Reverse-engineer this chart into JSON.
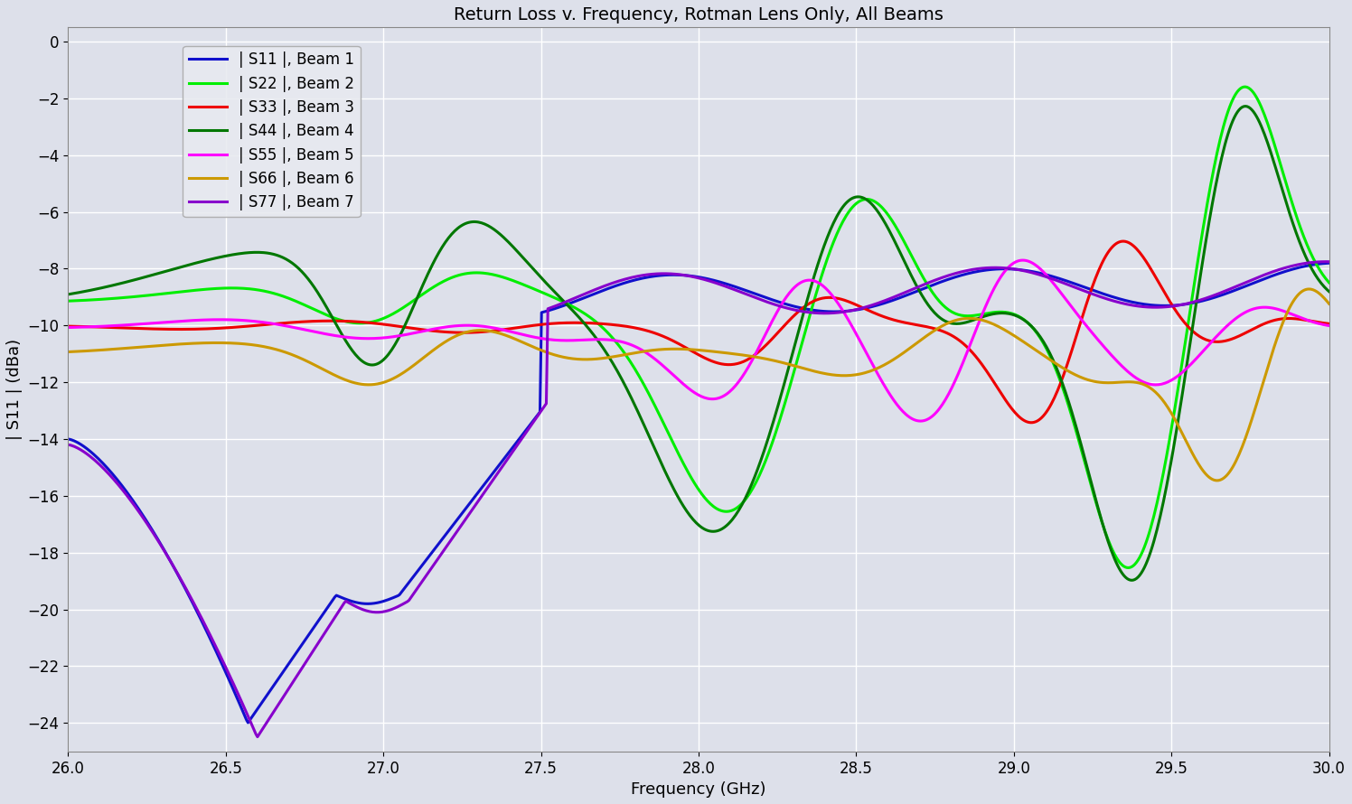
{
  "title": "Return Loss v. Frequency, Rotman Lens Only, All Beams",
  "xlabel": "Frequency (GHz)",
  "ylabel": "| S11 | (dBa)",
  "xlim": [
    26,
    30
  ],
  "ylim": [
    -25,
    0.5
  ],
  "xticks": [
    26,
    26.5,
    27,
    27.5,
    28,
    28.5,
    29,
    29.5,
    30
  ],
  "yticks": [
    0,
    -2,
    -4,
    -6,
    -8,
    -10,
    -12,
    -14,
    -16,
    -18,
    -20,
    -22,
    -24
  ],
  "background_color": "#dde0ea",
  "grid_color": "#ffffff",
  "legend_labels": [
    "| S11 |, Beam 1",
    "| S22 |, Beam 2",
    "| S33 |, Beam 3",
    "| S44 |, Beam 4",
    "| S55 |, Beam 5",
    "| S66 |, Beam 6",
    "| S77 |, Beam 7"
  ],
  "line_colors": [
    "#1010cc",
    "#00ee00",
    "#ee0000",
    "#007700",
    "#ff00ff",
    "#cc9900",
    "#8800cc"
  ],
  "linewidth": 2.2,
  "title_fontsize": 14,
  "label_fontsize": 13,
  "tick_fontsize": 12,
  "legend_fontsize": 12
}
